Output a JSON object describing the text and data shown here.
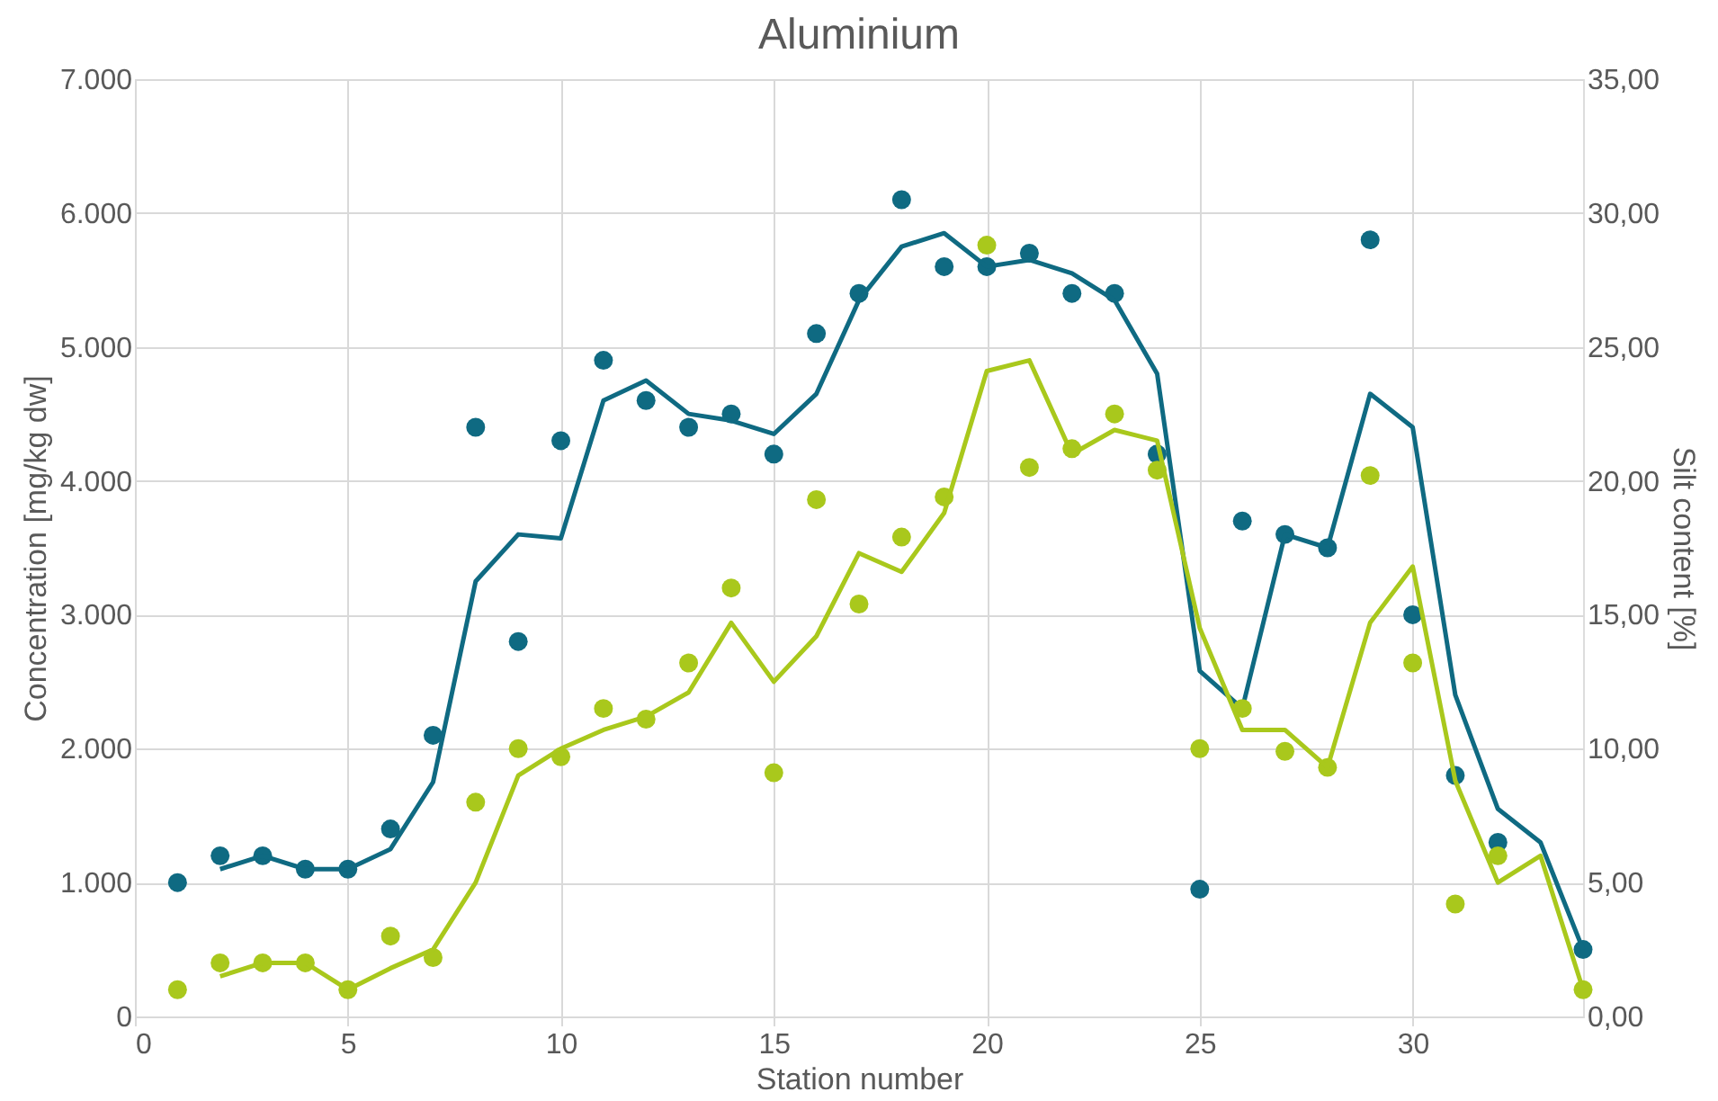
{
  "chart_data": {
    "type": "scatter",
    "title": "Aluminium",
    "xlabel": "Station number",
    "ylabel": "Concentration [mg/kg dw]",
    "y2label": "Silt content [%]",
    "xlim": [
      0,
      34
    ],
    "xticks": [
      0,
      5,
      10,
      15,
      20,
      25,
      30
    ],
    "ylim": [
      0,
      7000
    ],
    "yticks": [
      0,
      {
        "value": 1000,
        "label": "1.000"
      },
      {
        "value": 2000,
        "label": "2.000"
      },
      {
        "value": 3000,
        "label": "3.000"
      },
      {
        "value": 4000,
        "label": "4.000"
      },
      {
        "value": 5000,
        "label": "5.000"
      },
      {
        "value": 6000,
        "label": "6.000"
      },
      {
        "value": 7000,
        "label": "7.000"
      }
    ],
    "y2lim": [
      0,
      35
    ],
    "y2ticks": [
      {
        "value": 0,
        "label": "0,00"
      },
      {
        "value": 5,
        "label": "5,00"
      },
      {
        "value": 10,
        "label": "10,00"
      },
      {
        "value": 15,
        "label": "15,00"
      },
      {
        "value": 20,
        "label": "20,00"
      },
      {
        "value": 25,
        "label": "25,00"
      },
      {
        "value": 30,
        "label": "30,00"
      },
      {
        "value": 35,
        "label": "35,00"
      }
    ],
    "grid": true,
    "series": [
      {
        "type": "scatter",
        "marker": "circle",
        "color": "#0f6a82",
        "x": [
          1,
          2,
          3,
          4,
          5,
          6,
          7,
          8,
          9,
          10,
          11,
          12,
          13,
          14,
          15,
          16,
          17,
          18,
          19,
          20,
          21,
          22,
          23,
          24,
          25,
          26,
          27,
          28,
          29,
          30,
          31,
          32,
          34
        ],
        "values": [
          1000,
          1200,
          1200,
          1100,
          1100,
          1400,
          2100,
          4400,
          2800,
          4300,
          4900,
          4600,
          4400,
          4500,
          4200,
          5100,
          5400,
          6100,
          5600,
          5600,
          5700,
          5400,
          5400,
          4200,
          950,
          3700,
          3600,
          3500,
          5800,
          3000,
          1800,
          1300,
          500
        ]
      },
      {
        "type": "line",
        "color": "#0f6a82",
        "x": [
          2,
          3,
          4,
          5,
          6,
          7,
          8,
          9,
          10,
          11,
          12,
          13,
          14,
          15,
          16,
          17,
          18,
          19,
          20,
          21,
          22,
          23,
          24,
          25,
          26,
          27,
          28,
          29,
          30,
          31,
          32,
          33,
          34
        ],
        "values": [
          1100,
          1200,
          1100,
          1100,
          1250,
          1750,
          3250,
          3600,
          3570,
          4600,
          4750,
          4500,
          4450,
          4350,
          4650,
          5350,
          5750,
          5850,
          5600,
          5650,
          5550,
          5350,
          4800,
          2580,
          2300,
          3600,
          3500,
          4650,
          4400,
          2400,
          1550,
          1300,
          500
        ]
      },
      {
        "type": "scatter",
        "marker": "circle",
        "axis": "y2",
        "color": "#a9c81c",
        "x": [
          1,
          2,
          3,
          4,
          5,
          6,
          7,
          8,
          9,
          10,
          11,
          12,
          13,
          14,
          15,
          16,
          17,
          18,
          19,
          20,
          21,
          22,
          23,
          24,
          25,
          26,
          27,
          28,
          29,
          30,
          31,
          32,
          34
        ],
        "values": [
          1.0,
          2.0,
          2.0,
          2.0,
          1.0,
          3.0,
          2.2,
          8.0,
          10.0,
          9.7,
          11.5,
          11.1,
          13.2,
          16.0,
          9.1,
          19.3,
          15.4,
          17.9,
          19.4,
          28.8,
          20.5,
          21.2,
          22.5,
          20.4,
          10.0,
          11.5,
          9.9,
          9.3,
          20.2,
          13.2,
          4.2,
          6.0,
          1.0
        ]
      },
      {
        "type": "line",
        "axis": "y2",
        "color": "#a9c81c",
        "x": [
          2,
          3,
          4,
          5,
          6,
          7,
          8,
          9,
          10,
          11,
          12,
          13,
          14,
          15,
          16,
          17,
          18,
          19,
          20,
          21,
          22,
          23,
          24,
          25,
          26,
          27,
          28,
          29,
          30,
          31,
          32,
          33,
          34
        ],
        "values": [
          1.5,
          2.0,
          2.0,
          1.0,
          1.8,
          2.5,
          5.0,
          9.0,
          10.0,
          10.7,
          11.2,
          12.1,
          14.7,
          12.5,
          14.2,
          17.3,
          16.6,
          18.8,
          24.1,
          24.5,
          21.0,
          21.9,
          21.5,
          14.5,
          10.7,
          10.7,
          9.3,
          14.7,
          16.8,
          8.8,
          5.0,
          6.0,
          1.0
        ]
      }
    ]
  }
}
